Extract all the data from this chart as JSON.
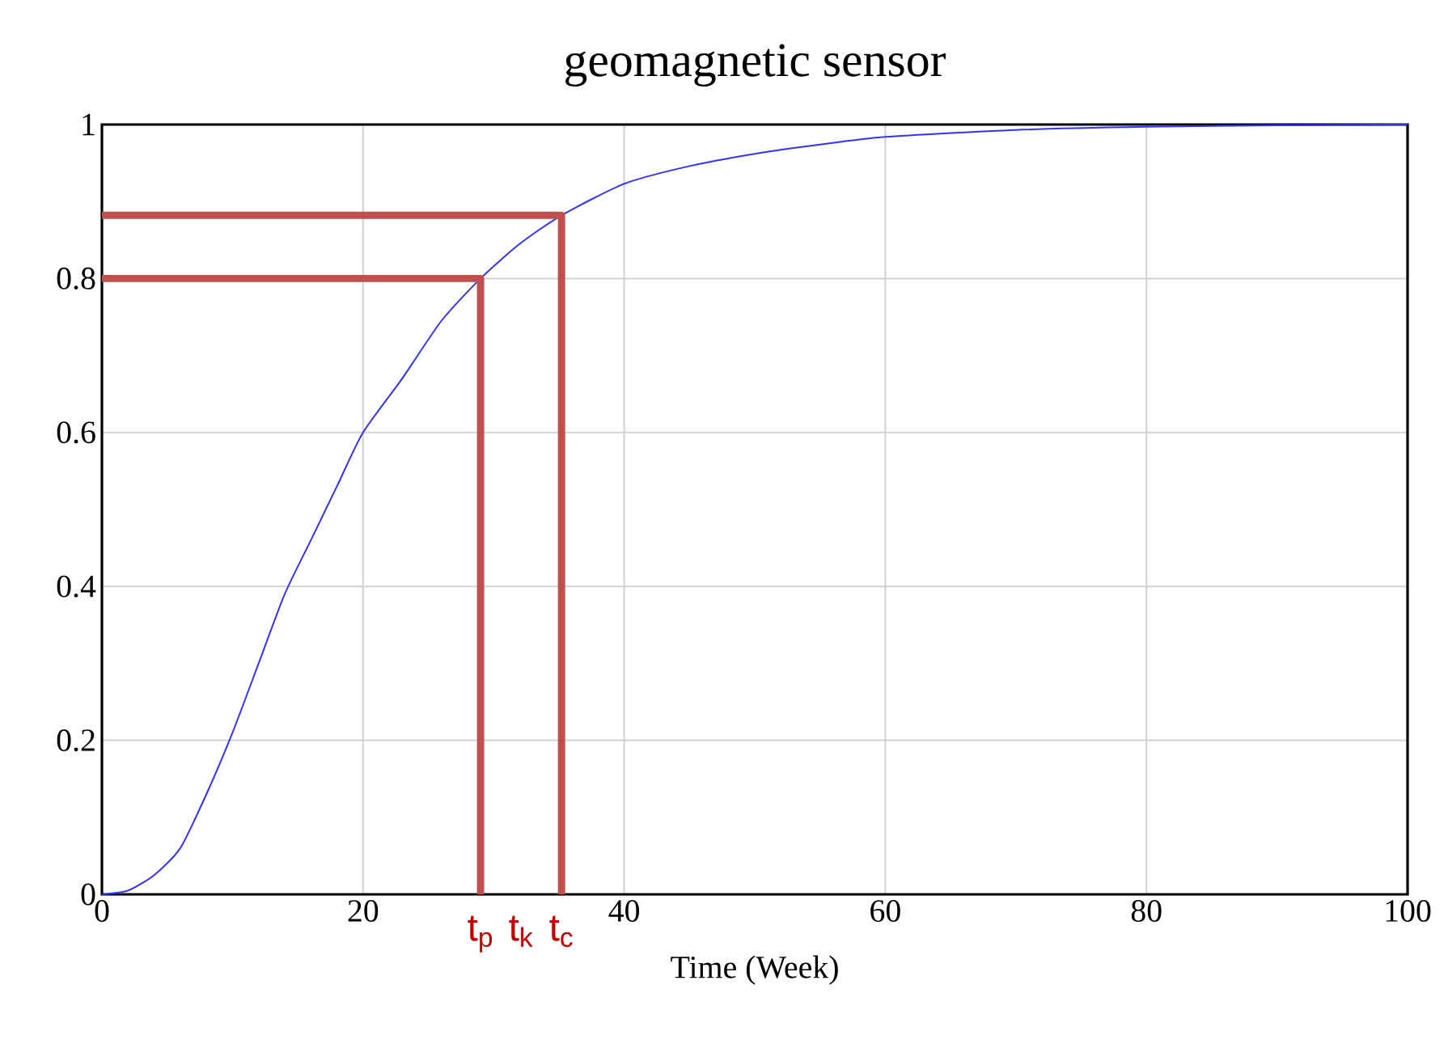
{
  "chart_data": {
    "type": "line",
    "title": "geomagnetic sensor",
    "xlabel": "Time (Week)",
    "xlim": [
      0,
      100
    ],
    "xticks": [
      0,
      20,
      40,
      60,
      80,
      100
    ],
    "ylim": [
      0,
      1
    ],
    "yticks": [
      0,
      0.2,
      0.4,
      0.6,
      0.8,
      1
    ],
    "grid": true,
    "series": [
      {
        "color": "#3333ff",
        "x": [
          0,
          2,
          4,
          6,
          8,
          10,
          12,
          14,
          16,
          18,
          20,
          23,
          26,
          29,
          32,
          35.2,
          40,
          45,
          50,
          55,
          60,
          70,
          80,
          90,
          100
        ],
        "values": [
          0,
          0.005,
          0.025,
          0.06,
          0.13,
          0.21,
          0.3,
          0.39,
          0.46,
          0.53,
          0.6,
          0.67,
          0.745,
          0.8,
          0.845,
          0.882,
          0.923,
          0.946,
          0.962,
          0.974,
          0.984,
          0.993,
          0.997,
          0.999,
          1
        ]
      },
      {
        "color": "#c0504d",
        "x": [
          0,
          29,
          29
        ],
        "values": [
          0.8,
          0.8,
          0
        ]
      },
      {
        "color": "#c0504d",
        "x": [
          0,
          35.2,
          35.2
        ],
        "values": [
          0.882,
          0.882,
          0
        ]
      }
    ],
    "annotations": [
      {
        "text": "t$_{p}$",
        "x": 29,
        "y": 0
      },
      "t$_{k}$",
      {
        "text": "t$_{c}$",
        "x": 35.2,
        "y": 0
      }
    ]
  }
}
